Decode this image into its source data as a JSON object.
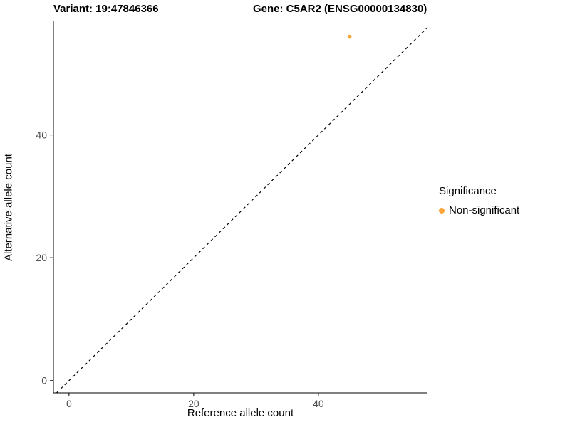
{
  "chart_data": {
    "type": "scatter",
    "title_left": "Variant: 19:47846366",
    "title_right": "Gene: C5AR2 (ENSG00000134830)",
    "xlabel": "Reference allele count",
    "ylabel": "Alternative allele count",
    "x_ticks": [
      0,
      20,
      40
    ],
    "y_ticks": [
      0,
      20,
      40
    ],
    "xlim": [
      -2.5,
      57.5
    ],
    "ylim": [
      -2,
      58.5
    ],
    "grid": false,
    "identity_line": {
      "style": "dashed",
      "equation": "y = x",
      "from": -2,
      "to": 57.5
    },
    "points": [
      {
        "x": 45,
        "y": 56,
        "series": "Non-significant"
      }
    ],
    "legend": {
      "position": "right",
      "title": "Significance",
      "items": [
        {
          "label": "Non-significant",
          "color": "#FAA43A"
        }
      ]
    },
    "colors": {
      "point": "#FAA43A",
      "axis_line": "#000000",
      "tick_label": "#4D4D4D"
    }
  }
}
